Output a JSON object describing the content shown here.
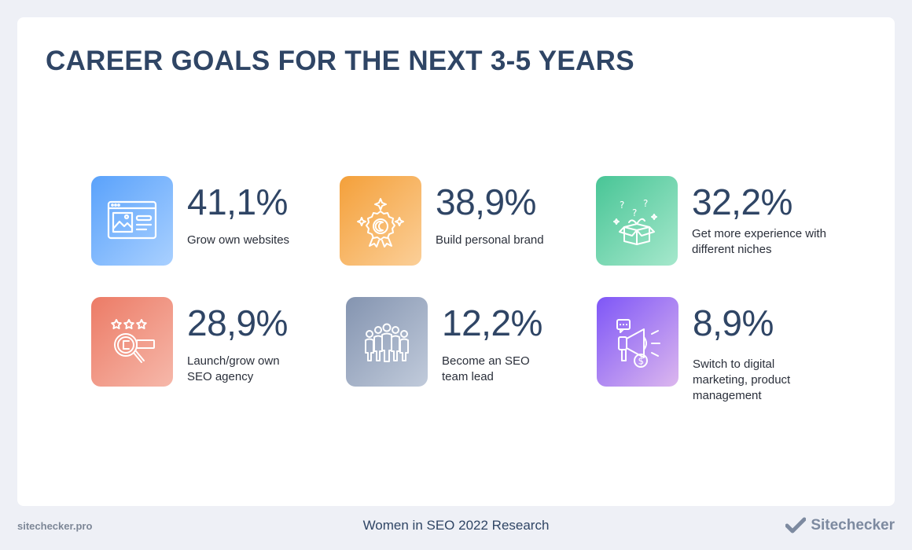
{
  "title": "CAREER GOALS FOR THE NEXT 3-5 YEARS",
  "stats": [
    {
      "value": "41,1%",
      "label": "Grow own websites",
      "icon": "website-icon",
      "gradient": [
        "#5aa2fb",
        "#a9d0ff"
      ]
    },
    {
      "value": "38,9%",
      "label": "Build personal brand",
      "icon": "award-badge-icon",
      "gradient": [
        "#f4a03a",
        "#fbcf98"
      ]
    },
    {
      "value": "32,2%",
      "label": "Get more experience with different niches",
      "icon": "mystery-box-icon",
      "gradient": [
        "#48c596",
        "#a6e8cc"
      ]
    },
    {
      "value": "28,9%",
      "label": "Launch/grow own SEO agency",
      "icon": "search-rating-icon",
      "gradient": [
        "#ec7b66",
        "#f6b8aa"
      ]
    },
    {
      "value": "12,2%",
      "label": "Become an SEO team lead",
      "icon": "team-icon",
      "gradient": [
        "#8494b0",
        "#c1cbdb"
      ]
    },
    {
      "value": "8,9%",
      "label": "Switch to digital marketing, product management",
      "icon": "megaphone-icon",
      "gradient": [
        "#7e56f7",
        "#dcb7ee"
      ]
    }
  ],
  "footer": {
    "site": "sitechecker.pro",
    "caption": "Women in SEO 2022 Research",
    "brand": "Sitechecker"
  },
  "colors": {
    "accent": "#2f4565",
    "background": "#eef0f6"
  }
}
